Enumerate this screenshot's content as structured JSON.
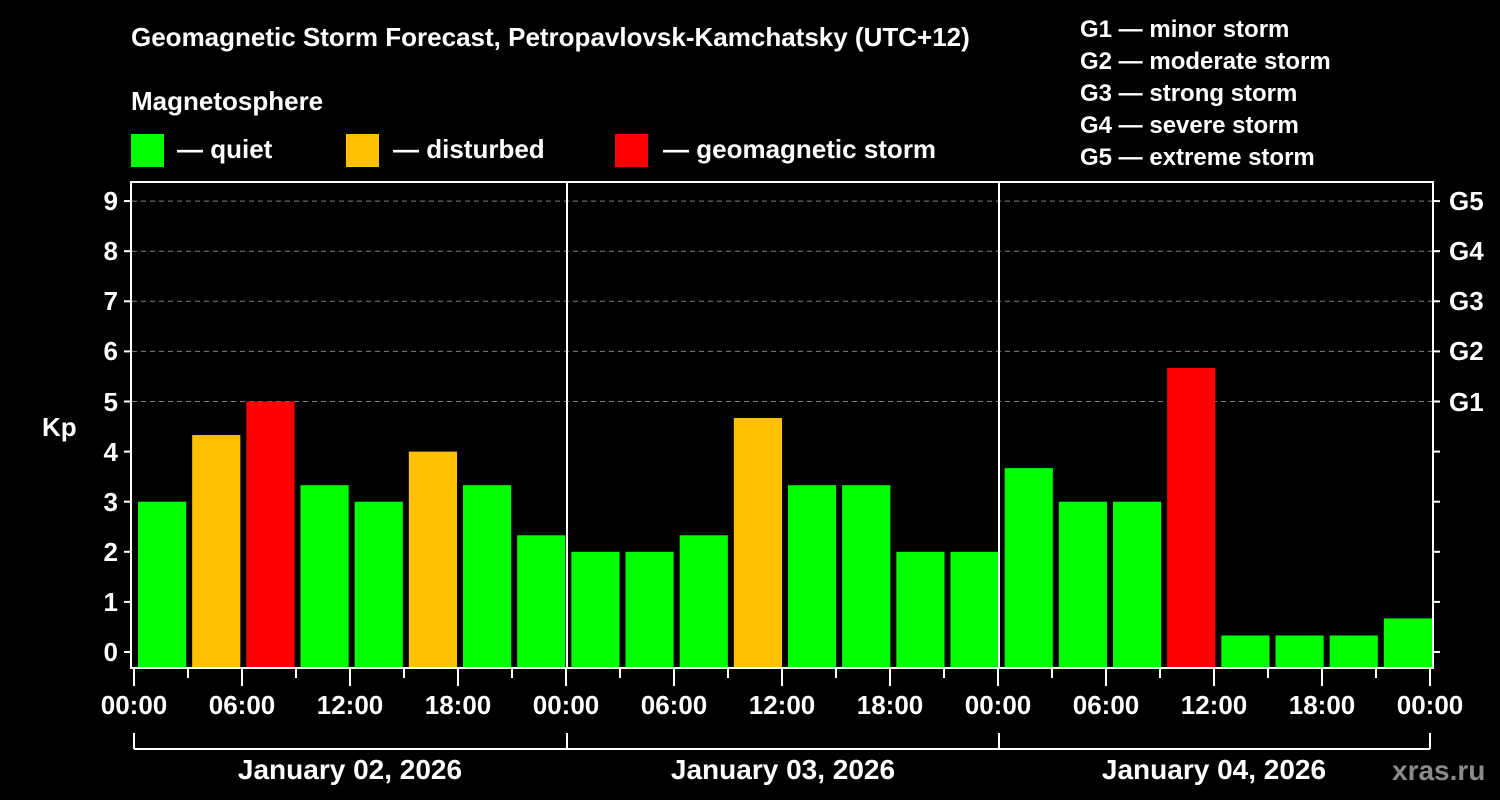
{
  "header": {
    "title": "Geomagnetic Storm Forecast, Petropavlovsk-Kamchatsky (UTC+12)",
    "magnetosphere_label": "Magnetosphere"
  },
  "legend": [
    {
      "label": "— quiet",
      "color": "#00ff00"
    },
    {
      "label": "— disturbed",
      "color": "#ffc000"
    },
    {
      "label": "— geomagnetic storm",
      "color": "#ff0000"
    }
  ],
  "g_scale": [
    "G1 — minor storm",
    "G2 — moderate storm",
    "G3 — strong storm",
    "G4 — severe storm",
    "G5 — extreme storm"
  ],
  "watermark": "xras.ru",
  "colors": {
    "quiet": "#00ff00",
    "disturbed": "#ffc000",
    "storm": "#ff0000",
    "background": "#000000",
    "grid": "#808080"
  },
  "chart_data": {
    "type": "bar",
    "title": "Geomagnetic Storm Forecast, Petropavlovsk-Kamchatsky (UTC+12)",
    "xlabel": "",
    "ylabel": "Kp",
    "ylim": [
      -0.33,
      9.33
    ],
    "y_ticks": [
      0,
      1,
      2,
      3,
      4,
      5,
      6,
      7,
      8,
      9
    ],
    "right_axis_labels": [
      {
        "kp": 5,
        "label": "G1"
      },
      {
        "kp": 6,
        "label": "G2"
      },
      {
        "kp": 7,
        "label": "G3"
      },
      {
        "kp": 8,
        "label": "G4"
      },
      {
        "kp": 9,
        "label": "G5"
      }
    ],
    "grid": "dashed horizontal at Kp 5-9",
    "x_tick_labels": [
      "00:00",
      "06:00",
      "12:00",
      "18:00",
      "00:00",
      "06:00",
      "12:00",
      "18:00",
      "00:00",
      "06:00",
      "12:00",
      "18:00",
      "00:00"
    ],
    "days": [
      "January 02, 2026",
      "January 03, 2026",
      "January 04, 2026"
    ],
    "categories": [
      "Jan 02 00-03",
      "Jan 02 03-06",
      "Jan 02 06-09",
      "Jan 02 09-12",
      "Jan 02 12-15",
      "Jan 02 15-18",
      "Jan 02 18-21",
      "Jan 02 21-24",
      "Jan 03 00-03",
      "Jan 03 03-06",
      "Jan 03 06-09",
      "Jan 03 09-12",
      "Jan 03 12-15",
      "Jan 03 15-18",
      "Jan 03 18-21",
      "Jan 03 21-24",
      "Jan 04 00-03",
      "Jan 04 03-06",
      "Jan 04 06-09",
      "Jan 04 09-12",
      "Jan 04 12-15",
      "Jan 04 15-18",
      "Jan 04 18-21",
      "Jan 04 21-24"
    ],
    "values": [
      3.0,
      4.33,
      5.0,
      3.33,
      3.0,
      4.0,
      3.33,
      2.33,
      2.0,
      2.0,
      2.33,
      4.67,
      3.33,
      3.33,
      2.0,
      2.0,
      3.67,
      3.0,
      3.0,
      5.67,
      0.33,
      0.33,
      0.33,
      0.67
    ],
    "bar_status": [
      "quiet",
      "disturbed",
      "storm",
      "quiet",
      "quiet",
      "disturbed",
      "quiet",
      "quiet",
      "quiet",
      "quiet",
      "quiet",
      "disturbed",
      "quiet",
      "quiet",
      "quiet",
      "quiet",
      "quiet",
      "quiet",
      "quiet",
      "storm",
      "quiet",
      "quiet",
      "quiet",
      "quiet"
    ],
    "legend": [
      "quiet",
      "disturbed",
      "geomagnetic storm"
    ],
    "legend_position": "top"
  }
}
